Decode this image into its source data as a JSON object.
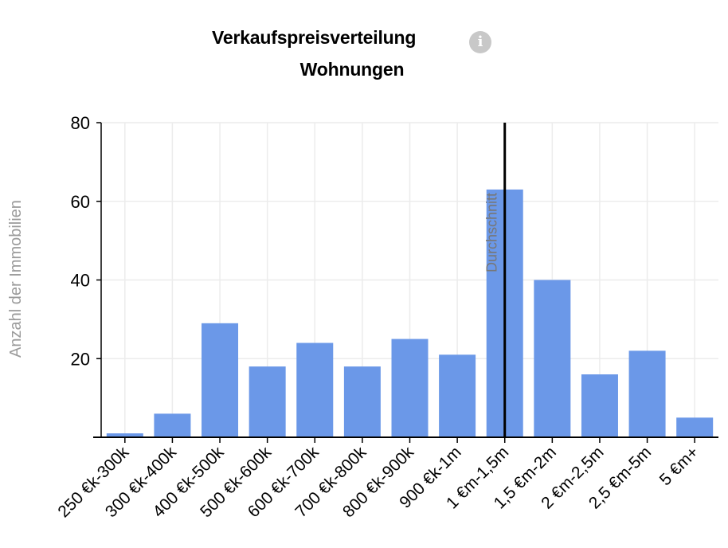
{
  "header": {
    "title": "Verkaufspreisverteilung",
    "subtitle": "Wohnungen",
    "info_icon": "info-icon"
  },
  "colors": {
    "bar": "#6b98e8",
    "grid": "#ececec",
    "axis": "#000000",
    "reference_line": "#000000"
  },
  "chart_data": {
    "type": "bar",
    "title": "Verkaufspreisverteilung",
    "subtitle": "Wohnungen",
    "xlabel": "",
    "ylabel": "Anzahl der Immobilien",
    "categories": [
      "250 €k-300k",
      "300 €k-400k",
      "400 €k-500k",
      "500 €k-600k",
      "600 €k-700k",
      "700 €k-800k",
      "800 €k-900k",
      "900 €k-1m",
      "1 €m-1,5m",
      "1,5 €m-2m",
      "2 €m-2,5m",
      "2,5 €m-5m",
      "5 €m+"
    ],
    "values": [
      1,
      6,
      29,
      18,
      24,
      18,
      25,
      21,
      63,
      40,
      16,
      22,
      5
    ],
    "ylim": [
      0,
      80
    ],
    "yticks": [
      20,
      40,
      60,
      80
    ],
    "grid": true,
    "reference_line": {
      "label": "Durchschnitt",
      "category": "1 €m-1,5m"
    }
  }
}
